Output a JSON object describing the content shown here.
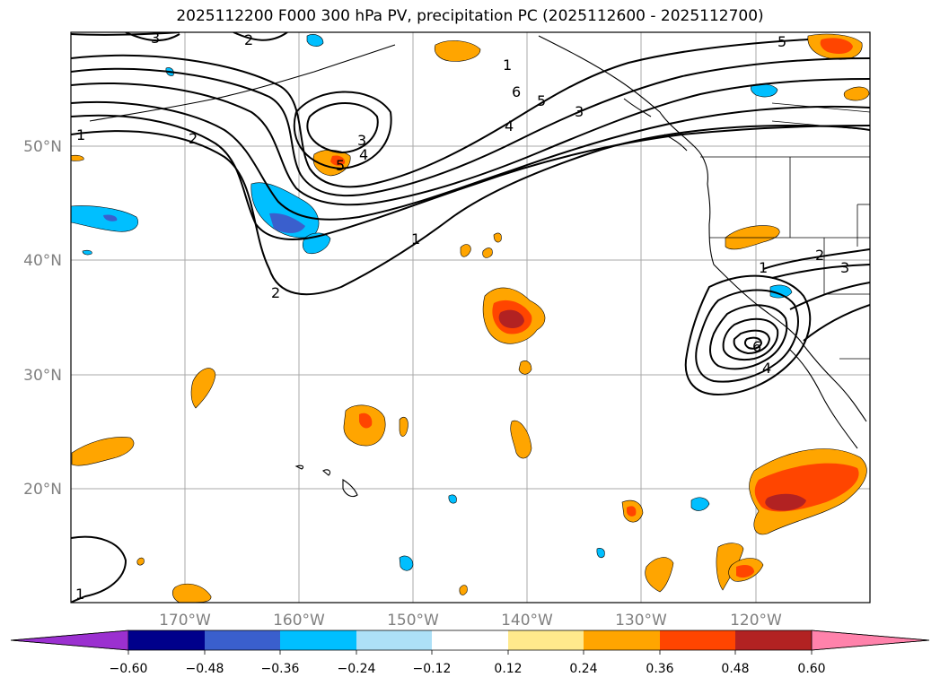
{
  "title": "2025112200 F000 300 hPa PV, precipitation PC (2025112600 - 2025112700)",
  "lat_labels": [
    "50°N",
    "40°N",
    "30°N",
    "20°N"
  ],
  "lon_labels": [
    "170°W",
    "160°W",
    "150°W",
    "140°W",
    "130°W",
    "120°W"
  ],
  "colorbar": {
    "ticks": [
      "−0.60",
      "−0.48",
      "−0.36",
      "−0.24",
      "−0.12",
      "0.12",
      "0.24",
      "0.36",
      "0.48",
      "0.60"
    ],
    "colors": [
      "#9b30d0",
      "#00008b",
      "#3a5fcd",
      "#00bfff",
      "#ade0f7",
      "#ffffff",
      "#ffe98c",
      "#ffa500",
      "#ff4500",
      "#b22222",
      "#ff82ab"
    ]
  },
  "contour_labels": [
    {
      "text": "1"
    },
    {
      "text": "2"
    },
    {
      "text": "3"
    },
    {
      "text": "4"
    },
    {
      "text": "5"
    },
    {
      "text": "6"
    },
    {
      "text": "1"
    },
    {
      "text": "2"
    },
    {
      "text": "3"
    },
    {
      "text": "4"
    },
    {
      "text": "5"
    },
    {
      "text": "6"
    },
    {
      "text": "1"
    },
    {
      "text": "2"
    },
    {
      "text": "3"
    },
    {
      "text": "1"
    },
    {
      "text": "2"
    },
    {
      "text": "1"
    },
    {
      "text": "3"
    },
    {
      "text": "4"
    },
    {
      "text": "5"
    }
  ]
}
